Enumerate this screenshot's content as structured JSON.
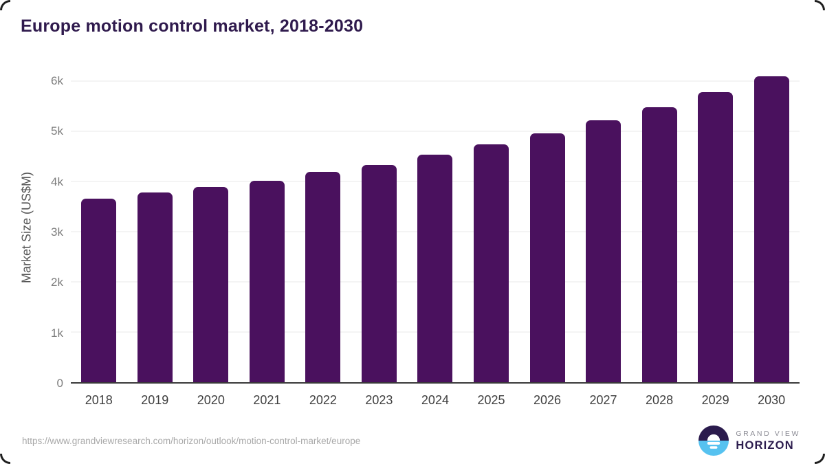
{
  "title": "Europe motion control market, 2018-2030",
  "footer": {
    "source_url": "https://www.grandviewresearch.com/horizon/outlook/motion-control-market/europe"
  },
  "logo": {
    "brand_top": "GRAND VIEW",
    "brand_bottom": "HORIZON"
  },
  "colors": {
    "bar_fill": "#4a115e",
    "title_text": "#2f1a4d",
    "logo_dark": "#2b1b4d",
    "logo_blue": "#56c2f0"
  },
  "chart_data": {
    "type": "bar",
    "title": "Europe motion control market, 2018-2030",
    "categories": [
      "2018",
      "2019",
      "2020",
      "2021",
      "2022",
      "2023",
      "2024",
      "2025",
      "2026",
      "2027",
      "2028",
      "2029",
      "2030"
    ],
    "values": [
      3655,
      3780,
      3890,
      4015,
      4190,
      4335,
      4530,
      4745,
      4955,
      5215,
      5480,
      5780,
      6100
    ],
    "xlabel": "",
    "ylabel": "Market Size (US$M)",
    "ylim": [
      0,
      6000
    ],
    "yticks": [
      {
        "label": "0",
        "value": 0
      },
      {
        "label": "1k",
        "value": 1000
      },
      {
        "label": "2k",
        "value": 2000
      },
      {
        "label": "3k",
        "value": 3000
      },
      {
        "label": "4k",
        "value": 4000
      },
      {
        "label": "5k",
        "value": 5000
      },
      {
        "label": "6k",
        "value": 6000
      }
    ],
    "grid": "horizontal",
    "legend": false
  }
}
